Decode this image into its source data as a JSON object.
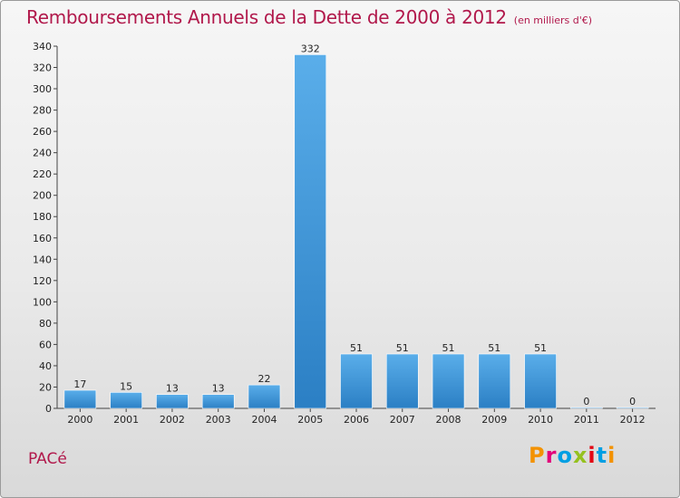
{
  "chart_data": {
    "type": "bar",
    "title": "Remboursements Annuels de la Dette de 2000 à 2012",
    "subtitle": "(en milliers d'€)",
    "categories": [
      "2000",
      "2001",
      "2002",
      "2003",
      "2004",
      "2005",
      "2006",
      "2007",
      "2008",
      "2009",
      "2010",
      "2011",
      "2012"
    ],
    "values": [
      17,
      15,
      13,
      13,
      22,
      332,
      51,
      51,
      51,
      51,
      51,
      0,
      0
    ],
    "ylim": [
      0,
      340
    ],
    "yticks": [
      0,
      20,
      40,
      60,
      80,
      100,
      120,
      140,
      160,
      180,
      200,
      220,
      240,
      260,
      280,
      300,
      320,
      340
    ],
    "grid": false,
    "xlabel": "",
    "ylabel": ""
  },
  "footer": {
    "town": "PACé",
    "logo": "Proxiti"
  },
  "colors": {
    "title": "#b1184b",
    "bar_light": "#5aaeea",
    "bar_dark": "#2b7fc4",
    "logo_letters": [
      "#f39200",
      "#e2007a",
      "#009fe3",
      "#95c11f",
      "#e30613",
      "#009fe3",
      "#f39200"
    ]
  }
}
